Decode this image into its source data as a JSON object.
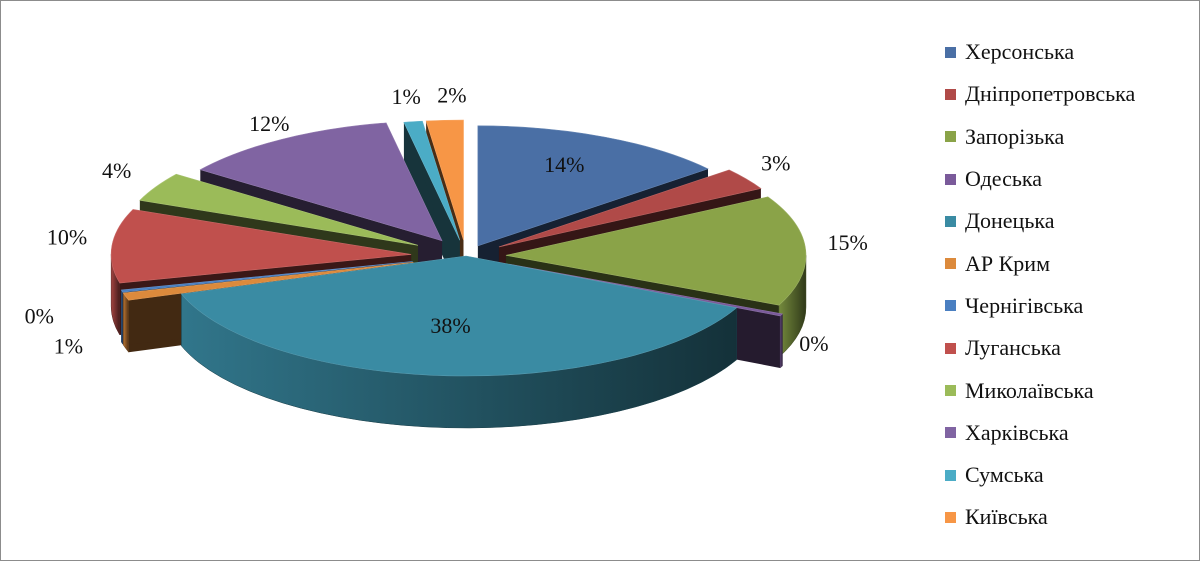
{
  "chart_data": {
    "type": "pie",
    "style": "3d-exploded",
    "title": "",
    "legend_position": "right",
    "series": [
      {
        "name": "Херсонська",
        "value": 14,
        "label": "14%",
        "color": "#4a6fa5"
      },
      {
        "name": "Дніпропетровська",
        "value": 3,
        "label": "3%",
        "color": "#b04a48"
      },
      {
        "name": "Запорізька",
        "value": 15,
        "label": "15%",
        "color": "#8aa348"
      },
      {
        "name": "Одеська",
        "value": 0.3,
        "label": "0%",
        "color": "#7a5a9a"
      },
      {
        "name": "Донецька",
        "value": 38,
        "label": "38%",
        "color": "#3a8ba3"
      },
      {
        "name": "АР Крим",
        "value": 1,
        "label": "1%",
        "color": "#dc8a3c"
      },
      {
        "name": "Чернігівська",
        "value": 0.3,
        "label": "0%",
        "color": "#4a7fc1"
      },
      {
        "name": "Луганська",
        "value": 10,
        "label": "10%",
        "color": "#c0504d"
      },
      {
        "name": "Миколаївська",
        "value": 4,
        "label": "4%",
        "color": "#9bbb59"
      },
      {
        "name": "Харківська",
        "value": 12,
        "label": "12%",
        "color": "#8064a2"
      },
      {
        "name": "Сумська",
        "value": 1,
        "label": "1%",
        "color": "#4bacc6"
      },
      {
        "name": "Київська",
        "value": 2,
        "label": "2%",
        "color": "#f79646"
      }
    ]
  }
}
